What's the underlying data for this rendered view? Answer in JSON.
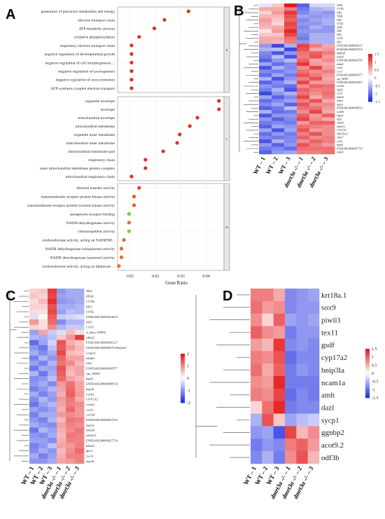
{
  "panels": {
    "A": {
      "letter": "A",
      "xlabel": "Gene Ratio",
      "xticks": [
        "0.01",
        "0.02",
        "0.03",
        "0.04"
      ],
      "xlim": [
        0.005,
        0.047
      ],
      "facets": [
        {
          "tag": "B",
          "terms": [
            {
              "label": "generation of precursor metabolites and energy",
              "x": 0.033,
              "color": "#e03020"
            },
            {
              "label": "electron transport chain",
              "x": 0.0235,
              "color": "#e03020"
            },
            {
              "label": "ATP metabolic process",
              "x": 0.0195,
              "color": "#e03020"
            },
            {
              "label": "oxidative phosphorylation",
              "x": 0.0135,
              "color": "#e03020"
            },
            {
              "label": "respiratory electron transport chain",
              "x": 0.0105,
              "color": "#e03020"
            },
            {
              "label": "negative regulation of developmental growth",
              "x": 0.0105,
              "color": "#e03020"
            },
            {
              "label": "negative regulation of cell morphogenesis ...",
              "x": 0.0105,
              "color": "#e03020"
            },
            {
              "label": "negative regulation of axonogenesis",
              "x": 0.0105,
              "color": "#e03020"
            },
            {
              "label": "negative regulation of axon extension",
              "x": 0.0105,
              "color": "#e03020"
            },
            {
              "label": "ATP synthesis coupled electron transport",
              "x": 0.0105,
              "color": "#e03020"
            }
          ]
        },
        {
          "tag": "C",
          "terms": [
            {
              "label": "organelle envelope",
              "x": 0.045,
              "color": "#e03020"
            },
            {
              "label": "envelope",
              "x": 0.045,
              "color": "#e03020"
            },
            {
              "label": "mitochondrial envelope",
              "x": 0.0365,
              "color": "#e03020"
            },
            {
              "label": "mitochondrial membrane",
              "x": 0.0335,
              "color": "#e03020"
            },
            {
              "label": "organelle inner membrane",
              "x": 0.0295,
              "color": "#e03020"
            },
            {
              "label": "mitochondrial inner membrane",
              "x": 0.0285,
              "color": "#e03020"
            },
            {
              "label": "mitochondrial membrane part",
              "x": 0.023,
              "color": "#e03020"
            },
            {
              "label": "respiratory chain",
              "x": 0.016,
              "color": "#e03020"
            },
            {
              "label": "inner mitochondrial membrane protein complex",
              "x": 0.016,
              "color": "#e03020"
            },
            {
              "label": "mitochondrial respiratory chain",
              "x": 0.0105,
              "color": "#e03020"
            }
          ]
        },
        {
          "tag": "M",
          "terms": [
            {
              "label": "electron transfer activity",
              "x": 0.0135,
              "color": "#e04020"
            },
            {
              "label": "transmembrane receptor protein kinase activity",
              "x": 0.0115,
              "color": "#e06020"
            },
            {
              "label": "transmembrane receptor protein tyrosine kinase activity",
              "x": 0.0115,
              "color": "#e06020"
            },
            {
              "label": "semaphorin receptor binding",
              "x": 0.0095,
              "color": "#70d040"
            },
            {
              "label": "NADH dehydrogenase activity",
              "x": 0.0095,
              "color": "#e07020"
            },
            {
              "label": "chemorepellent activity",
              "x": 0.0095,
              "color": "#70d040"
            },
            {
              "label": "oxidoreductase activity, acting on NAD(P)H...",
              "x": 0.0075,
              "color": "#e07020"
            },
            {
              "label": "NADH dehydrogenase (ubiquinone) activity",
              "x": 0.0065,
              "color": "#e07020"
            },
            {
              "label": "NADH dehydrogenase (quinone) activity",
              "x": 0.0065,
              "color": "#e07020"
            },
            {
              "label": "oxidoreductase activity, acting on diphenols ...",
              "x": 0.0055,
              "color": "#e07020"
            }
          ]
        }
      ]
    },
    "B": {
      "letter": "B",
      "columns": [
        "WT – 1",
        "WT – 2",
        "WT – 3",
        "dmrt3a -/- – 1",
        "dmrt3a -/- – 2",
        "dmrt3a -/- – 3"
      ],
      "genes": [
        "ATP8",
        "CYTB",
        "ND4",
        "ND4L",
        "ND2",
        "COX2",
        "ATP6",
        "ND6",
        "ND5",
        "COX1",
        "ND1",
        "ENSDARG00000029127",
        "ENSDARG00000027518",
        "ugdh1g1",
        "ndufb3",
        "ENSDARG00000023765",
        "ndufa5",
        "cox6c",
        "cox17",
        "ENSDARG00000018577",
        "cgo_86599",
        "ENSDARG00000030457",
        "cox5ab",
        "atp5i2",
        "cox11",
        "ndufa6",
        "ndufs1",
        "mgcfa",
        "ENSDARG00000008554",
        "cox6b1",
        "mgcrq",
        "atp5l",
        "ndufa9",
        "ndufa12",
        "COX7A2",
        "NDUFA13",
        "ndufs7",
        "cycsb",
        "mgcfb",
        "ENSDARG00000027720",
        "ndufs5"
      ],
      "colorbar": {
        "ticks": [
          "1.5",
          "1",
          "0.5",
          "0",
          "-0.5",
          "-1",
          "-1.5"
        ],
        "high": "#e31a1c",
        "mid": "#ffffff",
        "low": "#1f2ee0"
      },
      "values": [
        [
          -0.2,
          0.4,
          1.6,
          -1.2,
          -0.3,
          -0.3
        ],
        [
          0.6,
          0.6,
          0.9,
          -1.0,
          -0.6,
          -0.5
        ],
        [
          0.3,
          0.7,
          1.4,
          -0.9,
          -0.7,
          -0.8
        ],
        [
          0.5,
          0.5,
          1.2,
          -0.7,
          -0.8,
          -0.7
        ],
        [
          0.7,
          0.4,
          1.1,
          -0.9,
          -0.7,
          -0.6
        ],
        [
          0.6,
          0.3,
          1.3,
          -0.8,
          -0.8,
          -0.6
        ],
        [
          0.5,
          0.6,
          1.2,
          -0.9,
          -0.6,
          -0.8
        ],
        [
          0.2,
          0.7,
          1.5,
          -0.8,
          -0.8,
          -0.8
        ],
        [
          0.4,
          0.4,
          1.3,
          -0.9,
          -0.6,
          -0.6
        ],
        [
          0.6,
          0.6,
          1.0,
          -1.0,
          -0.6,
          -0.6
        ],
        [
          0.6,
          0.5,
          0.9,
          -0.8,
          -0.6,
          -0.6
        ],
        [
          -0.8,
          -1.4,
          -0.6,
          1.3,
          0.9,
          0.6
        ],
        [
          -0.6,
          -0.5,
          -1.4,
          1.2,
          0.6,
          0.7
        ],
        [
          -0.9,
          -1.3,
          -0.8,
          1.0,
          1.1,
          0.9
        ],
        [
          -1.0,
          -0.5,
          -1.3,
          0.9,
          1.2,
          0.7
        ],
        [
          -1.2,
          -0.8,
          -0.5,
          1.1,
          0.6,
          0.8
        ],
        [
          -0.7,
          -1.1,
          -0.9,
          1.4,
          0.7,
          0.6
        ],
        [
          -1.3,
          -0.6,
          -0.9,
          0.8,
          1.3,
          0.7
        ],
        [
          -0.9,
          -1.0,
          -0.8,
          1.0,
          0.8,
          0.9
        ],
        [
          -1.1,
          -0.7,
          -1.0,
          1.2,
          0.9,
          0.7
        ],
        [
          -0.6,
          -1.3,
          -0.8,
          0.9,
          1.2,
          0.6
        ],
        [
          -1.2,
          -0.9,
          -0.6,
          1.3,
          0.7,
          0.7
        ],
        [
          -0.8,
          -1.0,
          -1.1,
          0.8,
          1.1,
          1.0
        ],
        [
          -1.0,
          -0.6,
          -1.3,
          1.1,
          0.9,
          0.9
        ],
        [
          -1.4,
          -0.8,
          -0.6,
          1.0,
          0.8,
          1.0
        ],
        [
          -0.7,
          -1.2,
          -0.9,
          1.3,
          0.6,
          0.9
        ],
        [
          -1.1,
          -0.9,
          -0.7,
          0.9,
          1.2,
          0.6
        ],
        [
          -0.9,
          -0.7,
          -1.2,
          1.2,
          0.8,
          0.8
        ],
        [
          -1.2,
          -1.0,
          -0.5,
          1.0,
          1.0,
          0.7
        ],
        [
          -0.6,
          -1.1,
          -1.0,
          0.8,
          1.3,
          0.6
        ],
        [
          -1.3,
          -0.8,
          -0.8,
          1.1,
          0.7,
          1.1
        ],
        [
          -0.8,
          -1.2,
          -0.9,
          1.3,
          0.8,
          0.6
        ],
        [
          -1.0,
          -0.9,
          -1.0,
          0.7,
          1.1,
          1.1
        ],
        [
          -1.2,
          -0.7,
          -0.8,
          1.0,
          0.9,
          0.8
        ],
        [
          -0.7,
          -1.3,
          -0.7,
          1.2,
          0.7,
          0.8
        ],
        [
          -1.1,
          -0.8,
          -1.0,
          0.9,
          1.2,
          0.8
        ],
        [
          -0.9,
          -1.0,
          -0.9,
          1.1,
          0.8,
          0.9
        ],
        [
          -1.3,
          -0.6,
          -0.9,
          0.8,
          1.1,
          0.9
        ],
        [
          -0.8,
          -1.2,
          -0.8,
          1.2,
          0.9,
          0.7
        ],
        [
          -1.0,
          -0.9,
          -1.1,
          1.0,
          1.0,
          1.0
        ],
        [
          -1.2,
          -0.8,
          -0.7,
          0.9,
          0.9,
          1.0
        ]
      ]
    },
    "C": {
      "letter": "C",
      "columns": [
        "WT – 1",
        "WT – 2",
        "WT – 3",
        "dmrt3a -/- – 1",
        "dmrt3a -/- – 2",
        "dmrt3a -/- – 3"
      ],
      "genes": [
        "ND4",
        "ND4L",
        "CYTB",
        "ND2",
        "COX2",
        "ENSDARG00000023653",
        "ND5",
        "COX1",
        "si_dkey-109H.6",
        "sdhaf2",
        "ENSDARG00000029127",
        "ENSDARG00000027518/ndufs7",
        "cisqitn1",
        "ndufb3",
        "fdx2",
        "ENSDARG00000018577",
        "cgo_86599",
        "mgst1",
        "ENSDARG00000008554",
        "mgcfb",
        "cox4i1",
        "COX7A2",
        "cox6a1",
        "cox6c",
        "cox5ab",
        "ENSDARG00000023765",
        "mgcrq",
        "ndufa6",
        "ndufa12",
        "ENSDARG00000027720",
        "ndufs5",
        "gltx2",
        "cycsb",
        "mgcfb"
      ],
      "colorbar": {
        "ticks": [
          "2",
          "1",
          "0",
          "-1",
          "-2"
        ],
        "high": "#e31a1c",
        "mid": "#ffffff",
        "low": "#1f2ee0"
      },
      "values": [
        [
          0.4,
          0.5,
          1.7,
          -1.0,
          -0.8,
          -0.8
        ],
        [
          0.5,
          0.4,
          1.6,
          -0.9,
          -0.8,
          -0.8
        ],
        [
          0.3,
          0.6,
          1.8,
          -1.0,
          -0.9,
          -0.8
        ],
        [
          0.4,
          0.4,
          1.5,
          -0.8,
          -0.8,
          -0.7
        ],
        [
          0.3,
          0.3,
          1.6,
          -0.9,
          -0.6,
          -0.7
        ],
        [
          -0.3,
          0.1,
          1.4,
          -0.5,
          -0.4,
          -0.3
        ],
        [
          0.9,
          0.3,
          1.3,
          -1.1,
          -0.7,
          -0.7
        ],
        [
          0.4,
          0.3,
          1.0,
          -0.7,
          -0.5,
          -0.5
        ],
        [
          -0.9,
          0.8,
          -0.5,
          -0.3,
          0.6,
          0.3
        ],
        [
          -0.7,
          -0.8,
          -0.6,
          0.5,
          0.9,
          1.7
        ],
        [
          -1.4,
          -0.9,
          -0.4,
          1.5,
          0.7,
          0.5
        ],
        [
          -1.0,
          -1.3,
          -0.6,
          1.4,
          0.9,
          0.6
        ],
        [
          -0.8,
          -1.1,
          -0.8,
          1.6,
          0.6,
          0.5
        ],
        [
          -1.2,
          -0.7,
          -1.0,
          1.3,
          0.8,
          0.8
        ],
        [
          -0.9,
          -1.2,
          -0.7,
          1.2,
          1.0,
          0.6
        ],
        [
          -1.3,
          -0.8,
          -0.9,
          1.5,
          0.7,
          0.8
        ],
        [
          -0.7,
          -1.3,
          -0.8,
          1.4,
          0.6,
          0.8
        ],
        [
          -1.1,
          -1.0,
          -0.6,
          1.3,
          0.8,
          0.6
        ],
        [
          -1.0,
          -0.8,
          -1.1,
          0.9,
          1.2,
          0.8
        ],
        [
          -1.2,
          -1.0,
          -0.7,
          0.8,
          1.3,
          0.8
        ],
        [
          -0.8,
          -1.2,
          -0.9,
          0.7,
          1.4,
          0.9
        ],
        [
          -1.1,
          -0.7,
          -1.0,
          0.9,
          1.2,
          0.7
        ],
        [
          -1.3,
          -0.9,
          -0.7,
          0.8,
          1.1,
          1.0
        ],
        [
          -0.9,
          -1.1,
          -0.9,
          0.7,
          1.3,
          0.9
        ],
        [
          -1.2,
          -0.8,
          -0.8,
          0.9,
          1.0,
          0.9
        ],
        [
          -1.0,
          -1.2,
          -0.7,
          0.6,
          1.2,
          1.1
        ],
        [
          -0.8,
          -1.0,
          -1.1,
          0.8,
          1.1,
          1.0
        ],
        [
          -1.3,
          -0.7,
          -0.9,
          0.7,
          1.0,
          1.2
        ],
        [
          -1.0,
          -1.1,
          -0.8,
          0.6,
          1.2,
          1.1
        ],
        [
          -0.9,
          -0.9,
          -1.1,
          0.7,
          1.1,
          1.1
        ],
        [
          -1.2,
          -1.0,
          -0.6,
          0.8,
          0.9,
          1.1
        ],
        [
          -1.1,
          -0.8,
          -1.0,
          0.6,
          1.0,
          1.3
        ],
        [
          -0.8,
          -1.2,
          -0.9,
          0.7,
          1.1,
          1.1
        ],
        [
          -1.0,
          -1.0,
          -0.8,
          0.8,
          0.9,
          1.1
        ]
      ]
    },
    "D": {
      "letter": "D",
      "columns": [
        "WT – 1",
        "WT – 2",
        "WT – 3",
        "dmrt3a -/- – 1",
        "dmrt3a -/- – 2",
        "dmrt3a -/- – 3"
      ],
      "genes": [
        "krt18a.1",
        "sox9",
        "piwil1",
        "tex11",
        "gsdf",
        "cyp17a2",
        "bnip3la",
        "ncam1a",
        "amh",
        "dazl",
        "sycp1",
        "ggnbp2",
        "acot9.2",
        "odf3b"
      ],
      "colorbar": {
        "ticks": [
          "1.5",
          "1",
          "0.5",
          "0",
          "-0.5",
          "-1",
          "-1.5"
        ],
        "high": "#e31a1c",
        "mid": "#ffffff",
        "low": "#1f2ee0"
      },
      "values": [
        [
          0.9,
          0.9,
          0.6,
          -0.9,
          -0.8,
          -0.7
        ],
        [
          1.0,
          0.7,
          0.8,
          -0.9,
          -0.8,
          -0.8
        ],
        [
          0.8,
          0.3,
          1.1,
          -0.7,
          -0.8,
          -0.7
        ],
        [
          1.1,
          0.8,
          0.7,
          -1.0,
          -0.8,
          -0.8
        ],
        [
          0.7,
          0.5,
          1.4,
          -0.9,
          -0.8,
          -0.9
        ],
        [
          0.9,
          0.8,
          1.2,
          -1.1,
          -0.9,
          -0.9
        ],
        [
          1.0,
          0.6,
          1.1,
          -1.0,
          -0.8,
          -0.9
        ],
        [
          0.8,
          0.7,
          1.5,
          -1.0,
          -1.0,
          -1.0
        ],
        [
          0.9,
          0.8,
          1.3,
          -1.1,
          -0.9,
          -1.0
        ],
        [
          0.3,
          1.0,
          1.5,
          -1.0,
          -0.9,
          -0.9
        ],
        [
          -0.6,
          1.2,
          0.4,
          -0.7,
          -0.5,
          -0.4
        ],
        [
          -0.8,
          -0.7,
          -1.3,
          1.3,
          0.5,
          0.8
        ],
        [
          -1.0,
          -0.8,
          -0.9,
          0.9,
          1.1,
          0.7
        ],
        [
          -0.9,
          -0.6,
          -1.0,
          0.8,
          1.2,
          0.5
        ]
      ]
    }
  }
}
